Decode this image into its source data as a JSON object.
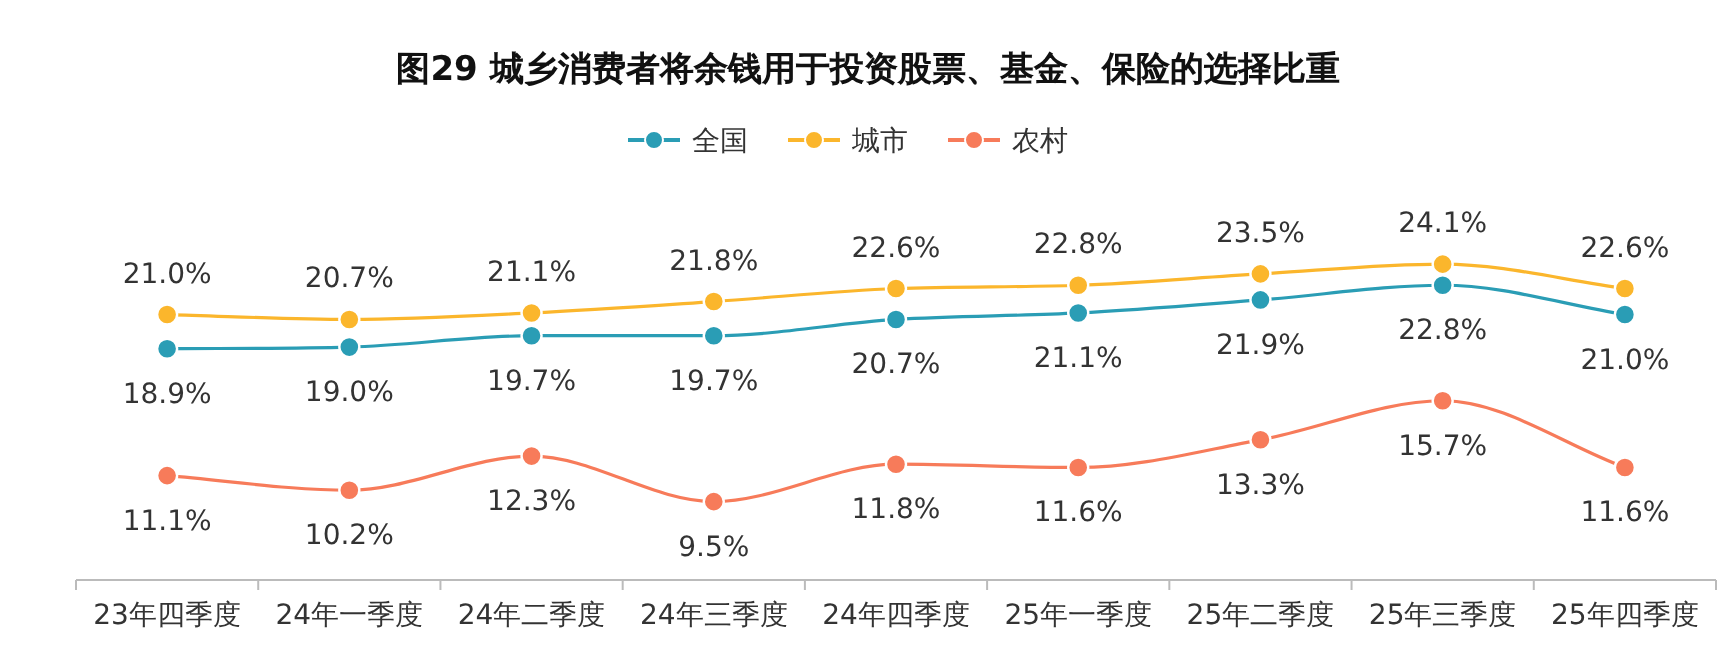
{
  "chart_data": {
    "type": "line",
    "title": "图29 城乡消费者将余钱用于投资股票、基金、保险的选择比重",
    "categories": [
      "23年四季度",
      "24年一季度",
      "24年二季度",
      "24年三季度",
      "24年四季度",
      "25年一季度",
      "25年二季度",
      "25年三季度",
      "25年四季度"
    ],
    "series": [
      {
        "name": "全国",
        "color": "#2a9db5",
        "values": [
          18.9,
          19.0,
          19.7,
          19.7,
          20.7,
          21.1,
          21.9,
          22.8,
          21.0
        ],
        "value_labels": [
          "18.9%",
          "19.0%",
          "19.7%",
          "19.7%",
          "20.7%",
          "21.1%",
          "21.9%",
          "22.8%",
          "21.0%"
        ]
      },
      {
        "name": "城市",
        "color": "#fbb62c",
        "values": [
          21.0,
          20.7,
          21.1,
          21.8,
          22.6,
          22.8,
          23.5,
          24.1,
          22.6
        ],
        "value_labels": [
          "21.0%",
          "20.7%",
          "21.1%",
          "21.8%",
          "22.6%",
          "22.8%",
          "23.5%",
          "24.1%",
          "22.6%"
        ]
      },
      {
        "name": "农村",
        "color": "#f77b5a",
        "values": [
          11.1,
          10.2,
          12.3,
          9.5,
          11.8,
          11.6,
          13.3,
          15.7,
          11.6
        ],
        "value_labels": [
          "11.1%",
          "10.2%",
          "12.3%",
          "9.5%",
          "11.8%",
          "11.6%",
          "13.3%",
          "15.7%",
          "11.6%"
        ]
      }
    ],
    "legend": "top",
    "marker": "circle",
    "grid": false
  }
}
